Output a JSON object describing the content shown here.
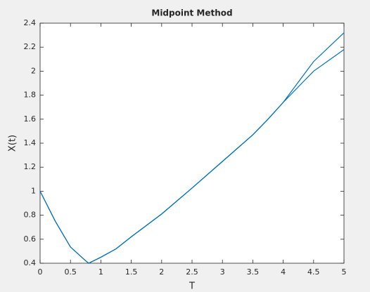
{
  "chart_data": {
    "type": "line",
    "title": "Midpoint Method",
    "xlabel": "T",
    "ylabel": "X(t)",
    "x": [
      0,
      0.25,
      0.5,
      0.75,
      0.8,
      1,
      1.25,
      1.5,
      2,
      2.5,
      3,
      3.5,
      3.75,
      4,
      4.25,
      4.5,
      4.75,
      5
    ],
    "series": [
      {
        "color": "#0072bd",
        "values": [
          1,
          0.75,
          0.535,
          0.42,
          0.4,
          0.45,
          0.52,
          0.62,
          0.81,
          1.026,
          1.248,
          1.47,
          1.6,
          1.74,
          1.91,
          2.08,
          2.2,
          2.32
        ]
      },
      {
        "color": "#0072bd",
        "values": [
          1,
          0.75,
          0.535,
          0.42,
          0.4,
          0.45,
          0.52,
          0.62,
          0.81,
          1.026,
          1.248,
          1.47,
          1.6,
          1.74,
          1.87,
          2.0,
          2.09,
          2.18
        ]
      }
    ],
    "xlim": [
      0,
      5
    ],
    "xticks": [
      0,
      0.5,
      1,
      1.5,
      2,
      2.5,
      3,
      3.5,
      4,
      4.5,
      5
    ],
    "ylim": [
      0.4,
      2.4
    ],
    "yticks": [
      0.4,
      0.6,
      0.8,
      1,
      1.2,
      1.4,
      1.6,
      1.8,
      2,
      2.2,
      2.4
    ],
    "grid": false
  }
}
